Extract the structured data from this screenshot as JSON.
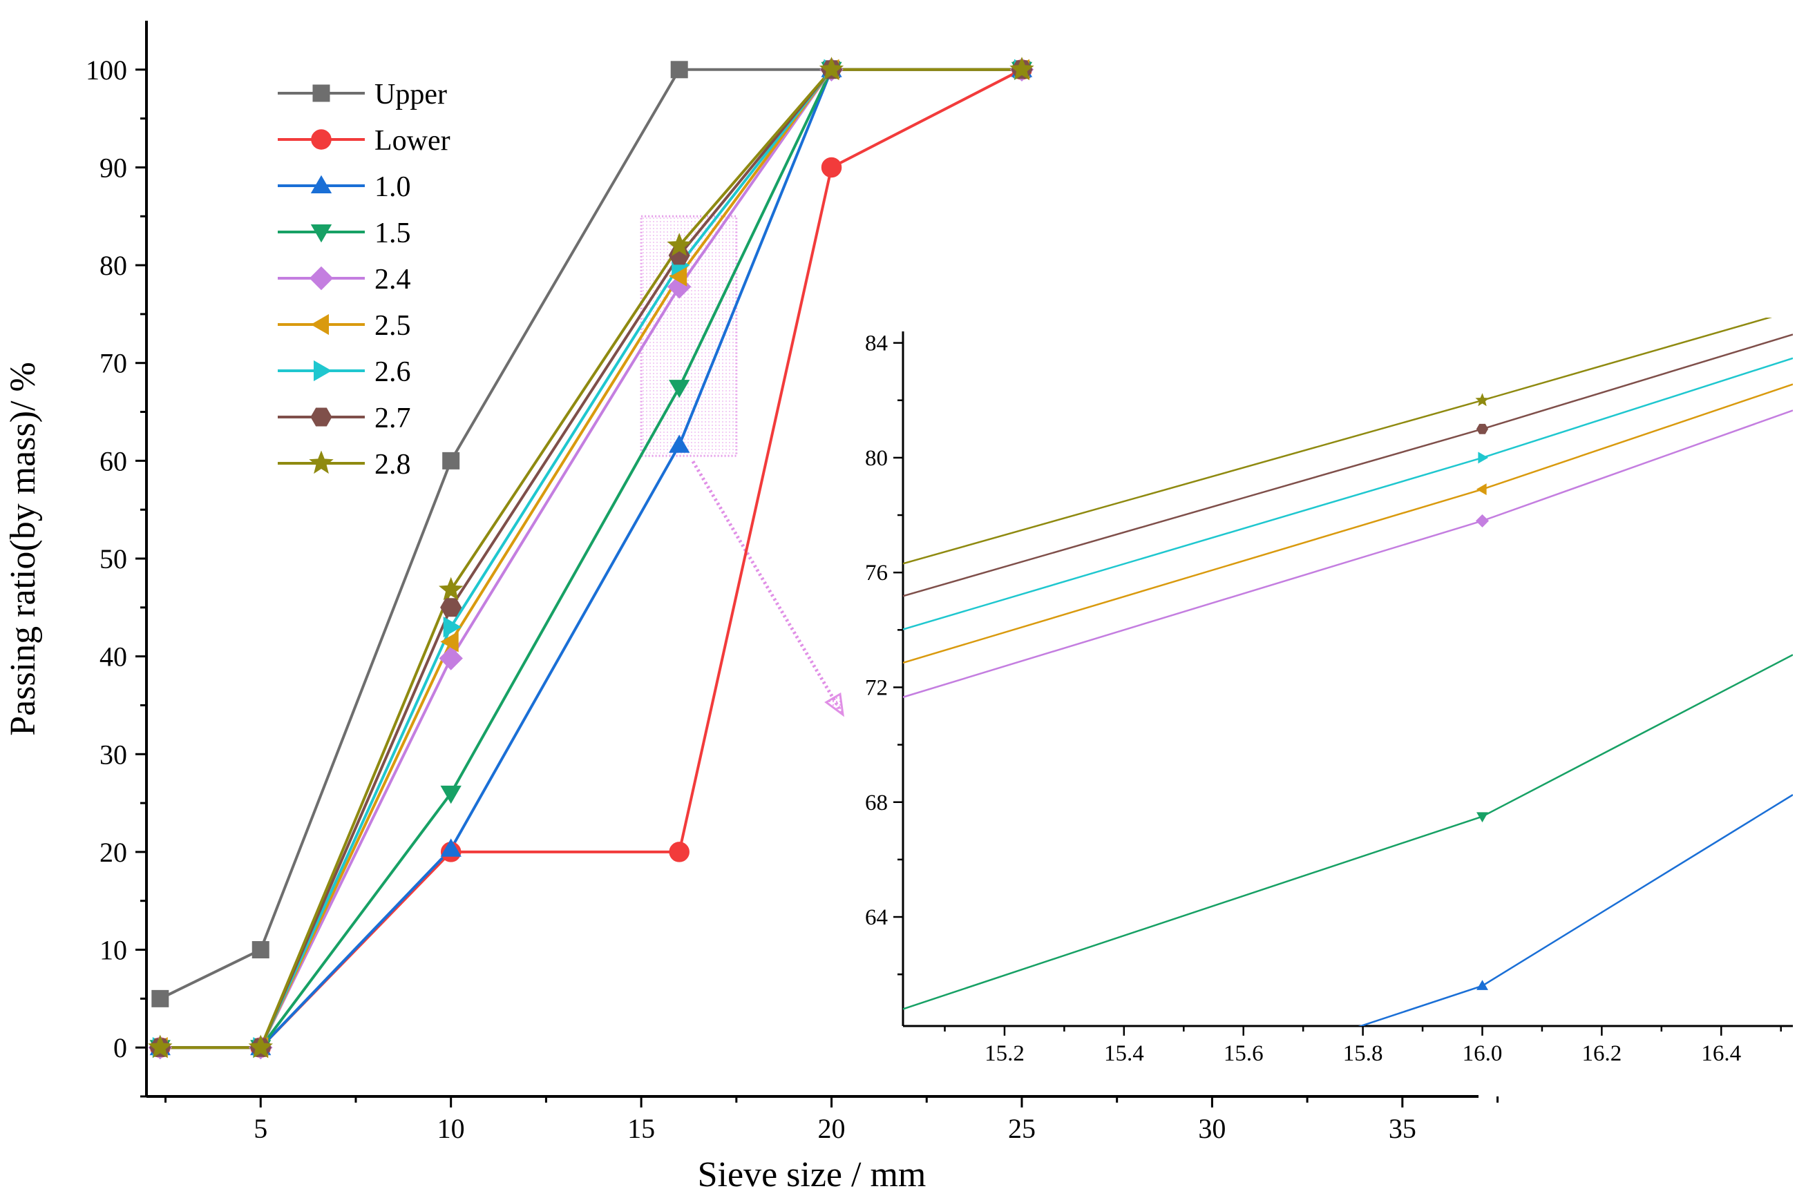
{
  "chart_data": {
    "type": "line",
    "title": "",
    "xlabel": "Sieve size / mm",
    "ylabel": "Passing ratio(by mass)/ %",
    "x_ticks": [
      5,
      10,
      15,
      20,
      25,
      30,
      35
    ],
    "y_ticks": [
      0,
      10,
      20,
      30,
      40,
      50,
      60,
      70,
      80,
      90,
      100
    ],
    "x": [
      2.36,
      4.75,
      9.5,
      16,
      19,
      26.5
    ],
    "x_positions": [
      2.36,
      5,
      10,
      16,
      20,
      25
    ],
    "xlim": [
      2,
      37
    ],
    "ylim": [
      -5,
      105
    ],
    "legend_position": "top-left",
    "series": [
      {
        "name": "Upper",
        "color": "#6e6e6e",
        "marker": "square",
        "values": [
          5,
          10,
          60,
          100,
          100,
          100
        ]
      },
      {
        "name": "Lower",
        "color": "#f23b3b",
        "marker": "circle",
        "values": [
          0,
          0,
          20,
          20,
          90,
          100
        ]
      },
      {
        "name": "1.0",
        "color": "#1a6fd6",
        "marker": "triangle-up",
        "values": [
          0,
          0,
          20.3,
          61.6,
          100,
          100
        ]
      },
      {
        "name": "1.5",
        "color": "#17a165",
        "marker": "triangle-down",
        "values": [
          0,
          0,
          26,
          67.5,
          100,
          100
        ]
      },
      {
        "name": "2.4",
        "color": "#c47ee0",
        "marker": "diamond",
        "values": [
          0,
          0,
          39.8,
          77.8,
          100,
          100
        ]
      },
      {
        "name": "2.5",
        "color": "#d99a0e",
        "marker": "triangle-left",
        "values": [
          0,
          0,
          41.5,
          78.9,
          100,
          100
        ]
      },
      {
        "name": "2.6",
        "color": "#1fc7cf",
        "marker": "triangle-right",
        "values": [
          0,
          0,
          43,
          80,
          100,
          100
        ]
      },
      {
        "name": "2.7",
        "color": "#7f4f4a",
        "marker": "hexagon",
        "values": [
          0,
          0,
          45,
          81,
          100,
          100
        ]
      },
      {
        "name": "2.8",
        "color": "#8f8a10",
        "marker": "star",
        "values": [
          0,
          0,
          46.8,
          82,
          100,
          100
        ]
      }
    ],
    "inset": {
      "xlim": [
        15.03,
        16.52
      ],
      "ylim": [
        60.2,
        84.4
      ],
      "x_ticks": [
        "15.2",
        "15.4",
        "15.6",
        "15.8",
        "16.0",
        "16.2",
        "16.4"
      ],
      "x_tick_values": [
        15.2,
        15.4,
        15.6,
        15.8,
        16.0,
        16.2,
        16.4
      ],
      "y_ticks": [
        "64",
        "68",
        "72",
        "76",
        "80",
        "84"
      ],
      "y_tick_values": [
        64,
        68,
        72,
        76,
        80,
        84
      ],
      "zoom_region": {
        "x": [
          15,
          17.5
        ],
        "y": [
          60.5,
          85
        ]
      }
    }
  }
}
